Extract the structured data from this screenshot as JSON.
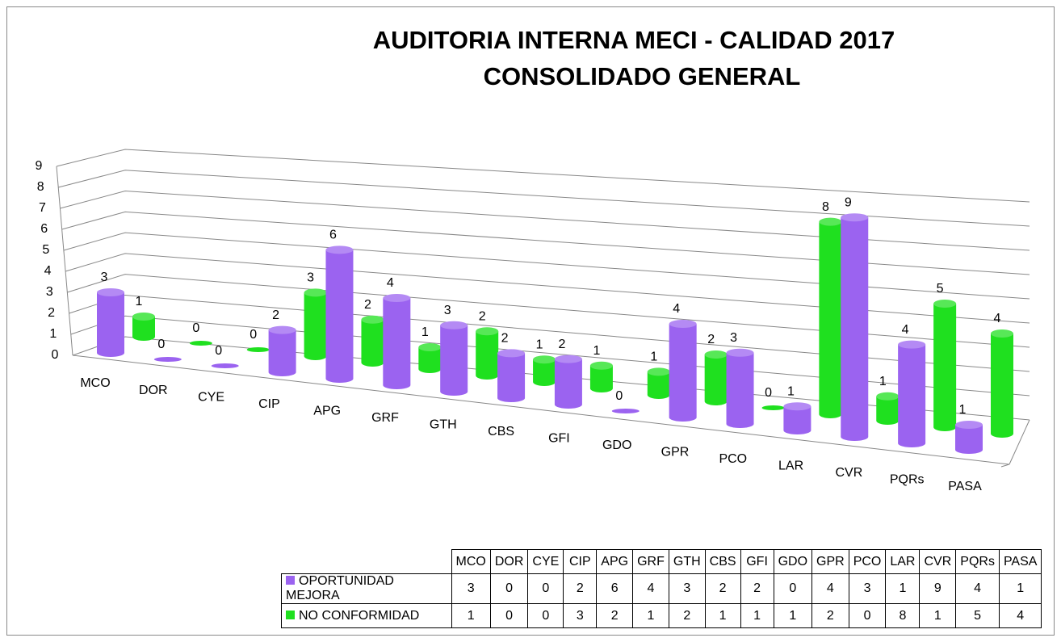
{
  "chart_data": {
    "type": "bar3d",
    "title": [
      "AUDITORIA INTERNA MECI - CALIDAD 2017",
      "CONSOLIDADO GENERAL"
    ],
    "categories": [
      "MCO",
      "DOR",
      "CYE",
      "CIP",
      "APG",
      "GRF",
      "GTH",
      "CBS",
      "GFI",
      "GDO",
      "GPR",
      "PCO",
      "LAR",
      "CVR",
      "PQRs",
      "PASA"
    ],
    "series": [
      {
        "name": "OPORTUNIDAD MEJORA",
        "color": "#9b63f0",
        "values": [
          3,
          0,
          0,
          2,
          6,
          4,
          3,
          2,
          2,
          0,
          4,
          3,
          1,
          9,
          4,
          1
        ]
      },
      {
        "name": "NO CONFORMIDAD",
        "color": "#1fe01f",
        "values": [
          1,
          0,
          0,
          3,
          2,
          1,
          2,
          1,
          1,
          1,
          2,
          0,
          8,
          1,
          5,
          4
        ]
      }
    ],
    "ylim": [
      0,
      9
    ],
    "yticks": [
      0,
      1,
      2,
      3,
      4,
      5,
      6,
      7,
      8,
      9
    ],
    "grid": true,
    "data_table": true
  }
}
